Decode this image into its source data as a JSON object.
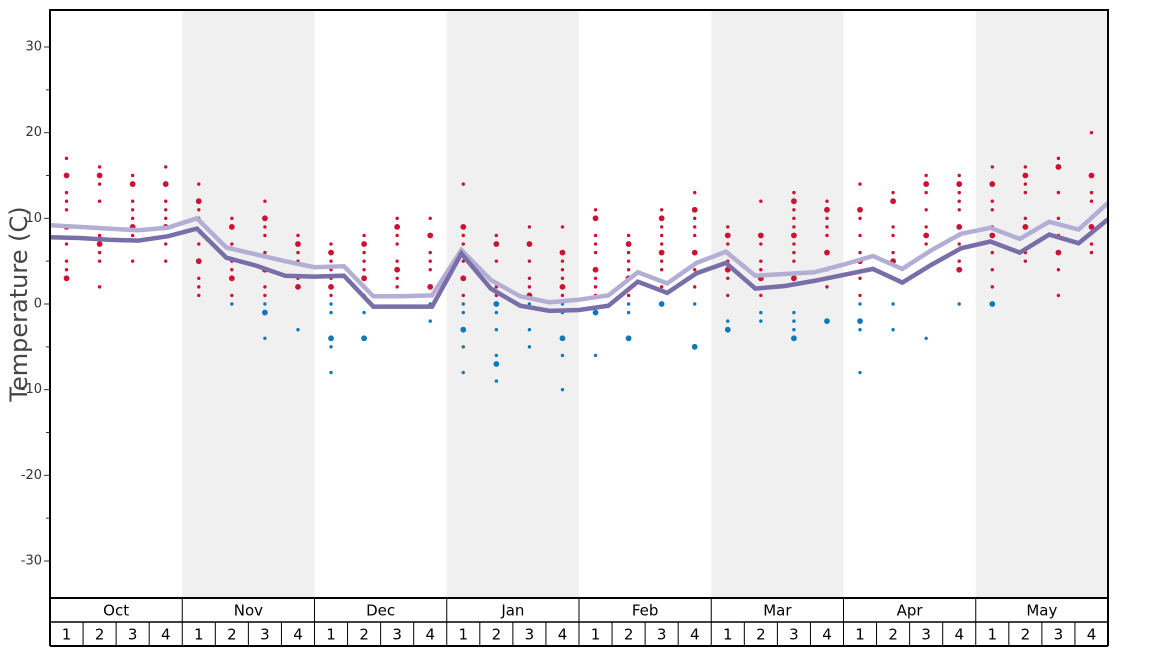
{
  "chart_data": {
    "type": "line",
    "title": "",
    "ylabel": "Temperature (C)",
    "xlabel": "",
    "ylim": [
      -30,
      30
    ],
    "yticks": [
      -30,
      -20,
      -10,
      0,
      10,
      20,
      30
    ],
    "months": [
      "Oct",
      "Nov",
      "Dec",
      "Jan",
      "Feb",
      "Mar",
      "Apr",
      "May"
    ],
    "weeks": [
      "1",
      "2",
      "3",
      "4"
    ],
    "colors": {
      "line_light": "#b3aed4",
      "line_dark": "#7a6ea8",
      "warm_dot": "#cc1133",
      "cold_dot": "#1177bb",
      "band_shade": "#f0f0f0",
      "frame": "#000000"
    },
    "series": [
      {
        "values": [
          9.2,
          9.0,
          8.8,
          8.6,
          8.9,
          10.0,
          6.6,
          5.8,
          5.0,
          4.3,
          4.4,
          0.9,
          0.9,
          1.0,
          6.3,
          2.8,
          0.9,
          0.2,
          0.5,
          1.0,
          3.7,
          2.4,
          4.8,
          6.1,
          3.3,
          3.5,
          3.7,
          4.6,
          5.6,
          4.1,
          6.3,
          8.2,
          8.9,
          7.6,
          9.6,
          8.7,
          11.8
        ]
      },
      {
        "values": [
          7.8,
          7.7,
          7.5,
          7.4,
          7.9,
          8.8,
          5.4,
          4.5,
          3.3,
          3.2,
          3.3,
          -0.3,
          -0.3,
          -0.3,
          5.9,
          1.8,
          -0.2,
          -0.8,
          -0.7,
          -0.2,
          2.6,
          1.3,
          3.6,
          4.8,
          1.8,
          2.1,
          2.7,
          3.4,
          4.1,
          2.5,
          4.6,
          6.5,
          7.3,
          6.0,
          8.1,
          7.1,
          9.9
        ]
      }
    ],
    "weekly_observations": [
      [
        17,
        15,
        13,
        12,
        11,
        9,
        7,
        5,
        4,
        3
      ],
      [
        16,
        15,
        14,
        12,
        8,
        7,
        6,
        5,
        2
      ],
      [
        15,
        14,
        12,
        11,
        10,
        9,
        8,
        5
      ],
      [
        16,
        14,
        12,
        11,
        10,
        9,
        7,
        5
      ],
      [
        14,
        12,
        11,
        10,
        7,
        5,
        3,
        2,
        1
      ],
      [
        10,
        9,
        7,
        5,
        4,
        3,
        1,
        0
      ],
      [
        12,
        10,
        9,
        8,
        6,
        4,
        2,
        1,
        0,
        -1,
        -4
      ],
      [
        8,
        7,
        6,
        5,
        3,
        2,
        -3
      ],
      [
        7,
        6,
        5,
        4,
        3,
        2,
        1,
        0,
        -1,
        -4,
        -5,
        -8
      ],
      [
        8,
        7,
        6,
        5,
        4,
        3,
        2,
        1,
        -1,
        -4
      ],
      [
        10,
        9,
        8,
        7,
        5,
        4,
        3,
        2
      ],
      [
        10,
        8,
        6,
        5,
        4,
        2,
        0,
        -2
      ],
      [
        14,
        9,
        8,
        7,
        5,
        3,
        1,
        0,
        -1,
        -3,
        -5,
        -8
      ],
      [
        8,
        7,
        5,
        2,
        1,
        0,
        -1,
        -3,
        -6,
        -7,
        -9
      ],
      [
        9,
        7,
        5,
        3,
        2,
        1,
        0,
        -3,
        -5
      ],
      [
        9,
        6,
        5,
        4,
        3,
        2,
        1,
        0,
        -1,
        -4,
        -6,
        -10
      ],
      [
        11,
        10,
        8,
        7,
        6,
        4,
        3,
        2,
        1,
        -1,
        -6
      ],
      [
        8,
        7,
        6,
        5,
        4,
        3,
        1,
        0,
        -1,
        -4
      ],
      [
        11,
        10,
        9,
        8,
        7,
        6,
        5,
        4,
        2,
        0
      ],
      [
        13,
        11,
        10,
        9,
        8,
        6,
        4,
        2,
        0,
        -5
      ],
      [
        9,
        8,
        7,
        6,
        5,
        4,
        3,
        1,
        -2,
        -3
      ],
      [
        12,
        8,
        7,
        5,
        4,
        3,
        1,
        -1,
        -2
      ],
      [
        13,
        12,
        11,
        10,
        9,
        8,
        7,
        6,
        5,
        3,
        -1,
        -2,
        -3,
        -4
      ],
      [
        12,
        11,
        10,
        9,
        8,
        6,
        4,
        3,
        2,
        -2
      ],
      [
        14,
        11,
        10,
        8,
        6,
        5,
        3,
        1,
        0,
        -2,
        -3,
        -8
      ],
      [
        13,
        12,
        9,
        8,
        6,
        5,
        3,
        0,
        -3
      ],
      [
        15,
        14,
        13,
        11,
        9,
        8,
        7,
        -4
      ],
      [
        15,
        14,
        13,
        12,
        11,
        9,
        8,
        7,
        5,
        4,
        0
      ],
      [
        16,
        14,
        12,
        11,
        9,
        8,
        6,
        4,
        2,
        0
      ],
      [
        16,
        15,
        14,
        13,
        10,
        9,
        8,
        6,
        5
      ],
      [
        17,
        16,
        13,
        10,
        8,
        6,
        4,
        1
      ],
      [
        20,
        15,
        13,
        12,
        10,
        9,
        7,
        6
      ]
    ]
  }
}
